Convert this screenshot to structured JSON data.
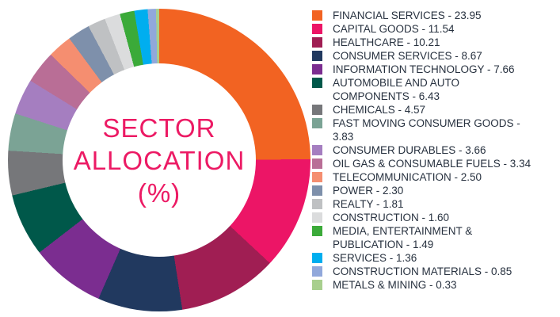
{
  "chart_data": {
    "type": "pie",
    "variant": "donut",
    "title": "SECTOR ALLOCATION (%)",
    "center_label": [
      "SECTOR",
      "ALLOCATION",
      "(%)"
    ],
    "center_label_color": "#EC1A64",
    "legend_position": "right",
    "legend_text_color": "#27313F",
    "legend_separator": " - ",
    "start_angle_deg": 0,
    "direction": "clockwise",
    "donut_hole_ratio": 0.64,
    "categories": [
      "FINANCIAL SERVICES",
      "CAPITAL GOODS",
      "HEALTHCARE",
      "CONSUMER SERVICES",
      "INFORMATION TECHNOLOGY",
      "AUTOMOBILE AND AUTO COMPONENTS",
      "CHEMICALS",
      "FAST MOVING CONSUMER GOODS",
      "CONSUMER DURABLES",
      "OIL GAS & CONSUMABLE FUELS",
      "TELECOMMUNICATION",
      "POWER",
      "REALTY",
      "CONSTRUCTION",
      "MEDIA, ENTERTAINMENT & PUBLICATION",
      "SERVICES",
      "CONSTRUCTION MATERIALS",
      "METALS & MINING"
    ],
    "values": [
      23.95,
      11.54,
      10.21,
      8.67,
      7.66,
      6.43,
      4.57,
      3.83,
      3.66,
      3.34,
      2.5,
      2.3,
      1.81,
      1.6,
      1.49,
      1.36,
      0.85,
      0.33
    ],
    "colors": [
      "#F26322",
      "#EC1566",
      "#A01E53",
      "#21395F",
      "#7B2D90",
      "#00584A",
      "#76777A",
      "#7BA395",
      "#A57EC0",
      "#B96E96",
      "#F58E70",
      "#7E90AB",
      "#BFC1C3",
      "#DBDCDD",
      "#3BAA39",
      "#00AEEF",
      "#91A8DB",
      "#A8CF8E"
    ]
  }
}
